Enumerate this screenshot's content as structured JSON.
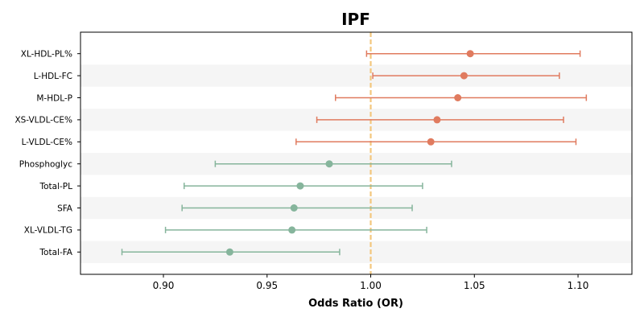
{
  "chart_data": {
    "type": "forest",
    "title": "IPF",
    "xlabel": "Odds Ratio (OR)",
    "ylabel": "",
    "xlim": [
      0.86,
      1.126
    ],
    "x_ticks": [
      0.9,
      0.95,
      1.0,
      1.05,
      1.1
    ],
    "x_tick_labels": [
      "0.90",
      "0.95",
      "1.00",
      "1.05",
      "1.10"
    ],
    "reference_line": 1.0,
    "grid": false,
    "row_banding": true,
    "colors": {
      "positive": "#e07b5f",
      "negative": "#86b59c",
      "reference": "#f3c77d",
      "band": "#f5f5f5",
      "axis": "#000000"
    },
    "rows": [
      {
        "label": "XL-HDL-PL%",
        "or": 1.048,
        "ci_low": 0.998,
        "ci_high": 1.101
      },
      {
        "label": "L-HDL-FC",
        "or": 1.045,
        "ci_low": 1.001,
        "ci_high": 1.091
      },
      {
        "label": "M-HDL-P",
        "or": 1.042,
        "ci_low": 0.983,
        "ci_high": 1.104
      },
      {
        "label": "XS-VLDL-CE%",
        "or": 1.032,
        "ci_low": 0.974,
        "ci_high": 1.093
      },
      {
        "label": "L-VLDL-CE%",
        "or": 1.029,
        "ci_low": 0.964,
        "ci_high": 1.099
      },
      {
        "label": "Phosphoglyc",
        "or": 0.98,
        "ci_low": 0.925,
        "ci_high": 1.039
      },
      {
        "label": "Total-PL",
        "or": 0.966,
        "ci_low": 0.91,
        "ci_high": 1.025
      },
      {
        "label": "SFA",
        "or": 0.963,
        "ci_low": 0.909,
        "ci_high": 1.02
      },
      {
        "label": "XL-VLDL-TG",
        "or": 0.962,
        "ci_low": 0.901,
        "ci_high": 1.027
      },
      {
        "label": "Total-FA",
        "or": 0.932,
        "ci_low": 0.88,
        "ci_high": 0.985
      }
    ]
  }
}
